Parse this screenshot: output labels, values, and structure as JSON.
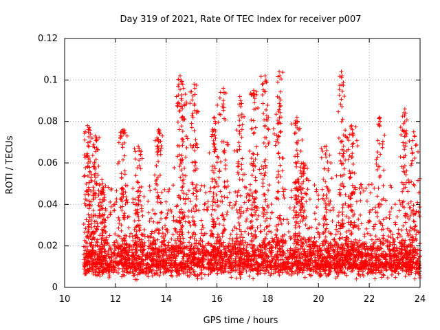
{
  "chart_data": {
    "type": "scatter",
    "title": "Day 319 of 2021, Rate Of TEC Index for receiver p007",
    "xlabel": "GPS time / hours",
    "ylabel": "ROTI / TECUs",
    "xlim": [
      10,
      24
    ],
    "ylim": [
      0,
      0.12
    ],
    "xticks": [
      10,
      12,
      14,
      16,
      18,
      20,
      22,
      24
    ],
    "xtick_labels": [
      "10",
      "12",
      "14",
      "16",
      "18",
      "20",
      "22",
      "24"
    ],
    "yticks": [
      0,
      0.02,
      0.04,
      0.06,
      0.08,
      0.1,
      0.12
    ],
    "ytick_labels": [
      "0",
      "0.02",
      "0.04",
      "0.06",
      "0.08",
      "0.1",
      "0.12"
    ],
    "grid": true,
    "marker": "+",
    "color": "#ff0000",
    "series": [
      {
        "name": "ROTI",
        "x_range": [
          10.75,
          24
        ],
        "cluster_center_y": 0.012,
        "note": "dense cloud of points mostly between 0.005 and 0.03, with frequent spikes",
        "peaks": [
          {
            "x": 10.9,
            "y": 0.078
          },
          {
            "x": 11.2,
            "y": 0.073
          },
          {
            "x": 11.5,
            "y": 0.05
          },
          {
            "x": 12.3,
            "y": 0.076
          },
          {
            "x": 12.9,
            "y": 0.068
          },
          {
            "x": 13.7,
            "y": 0.076
          },
          {
            "x": 14.55,
            "y": 0.102
          },
          {
            "x": 14.65,
            "y": 0.098
          },
          {
            "x": 15.1,
            "y": 0.098
          },
          {
            "x": 15.9,
            "y": 0.082
          },
          {
            "x": 16.25,
            "y": 0.096
          },
          {
            "x": 16.9,
            "y": 0.092
          },
          {
            "x": 17.45,
            "y": 0.095
          },
          {
            "x": 17.9,
            "y": 0.102
          },
          {
            "x": 18.45,
            "y": 0.104
          },
          {
            "x": 19.15,
            "y": 0.082
          },
          {
            "x": 19.4,
            "y": 0.06
          },
          {
            "x": 20.3,
            "y": 0.068
          },
          {
            "x": 20.9,
            "y": 0.104
          },
          {
            "x": 21.3,
            "y": 0.078
          },
          {
            "x": 22.4,
            "y": 0.082
          },
          {
            "x": 23.4,
            "y": 0.086
          },
          {
            "x": 23.75,
            "y": 0.075
          }
        ]
      }
    ]
  }
}
